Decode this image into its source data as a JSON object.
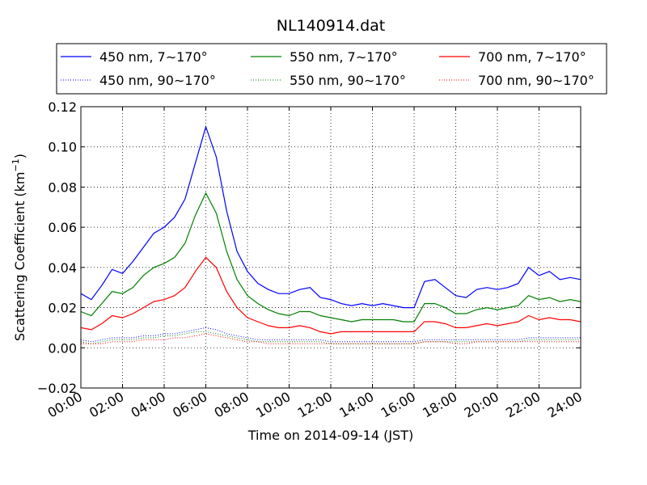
{
  "chart_data": {
    "type": "line",
    "title": "NL140914.dat",
    "xlabel": "Time on 2014-09-14 (JST)",
    "ylabel": "Scattering Coefficient (km",
    "ylabel_sup": "−1",
    "ylabel_end": ")",
    "xlim": [
      0,
      24
    ],
    "ylim": [
      -0.02,
      0.12
    ],
    "grid": true,
    "legend_position": "top",
    "x_ticks": [
      0,
      2,
      4,
      6,
      8,
      10,
      12,
      14,
      16,
      18,
      20,
      22,
      24
    ],
    "x_tick_labels": [
      "00:00",
      "02:00",
      "04:00",
      "06:00",
      "08:00",
      "10:00",
      "12:00",
      "14:00",
      "16:00",
      "18:00",
      "20:00",
      "22:00",
      "24:00"
    ],
    "y_ticks": [
      -0.02,
      0.0,
      0.02,
      0.04,
      0.06,
      0.08,
      0.1,
      0.12
    ],
    "y_tick_labels": [
      "−0.02",
      "0.00",
      "0.02",
      "0.04",
      "0.06",
      "0.08",
      "0.10",
      "0.12"
    ],
    "x": [
      0,
      0.5,
      1,
      1.5,
      2,
      2.5,
      3,
      3.5,
      4,
      4.5,
      5,
      5.5,
      6,
      6.5,
      7,
      7.5,
      8,
      8.5,
      9,
      9.5,
      10,
      10.5,
      11,
      11.5,
      12,
      12.5,
      13,
      13.5,
      14,
      14.5,
      15,
      15.5,
      16,
      16.5,
      17,
      17.5,
      18,
      18.5,
      19,
      19.5,
      20,
      20.5,
      21,
      21.5,
      22,
      22.5,
      23,
      23.5,
      24
    ],
    "series": [
      {
        "name": "450 nm, 7∼170°",
        "color": "#0000ff",
        "style": "solid",
        "values": [
          0.027,
          0.024,
          0.031,
          0.039,
          0.037,
          0.043,
          0.05,
          0.057,
          0.06,
          0.065,
          0.074,
          0.092,
          0.11,
          0.095,
          0.068,
          0.048,
          0.038,
          0.032,
          0.029,
          0.027,
          0.027,
          0.029,
          0.03,
          0.025,
          0.024,
          0.022,
          0.021,
          0.022,
          0.021,
          0.022,
          0.021,
          0.02,
          0.02,
          0.033,
          0.034,
          0.03,
          0.026,
          0.025,
          0.029,
          0.03,
          0.029,
          0.03,
          0.032,
          0.04,
          0.036,
          0.038,
          0.034,
          0.035,
          0.034
        ]
      },
      {
        "name": "550 nm, 7∼170°",
        "color": "#008000",
        "style": "solid",
        "values": [
          0.018,
          0.016,
          0.022,
          0.028,
          0.027,
          0.03,
          0.036,
          0.04,
          0.042,
          0.045,
          0.052,
          0.066,
          0.077,
          0.067,
          0.048,
          0.034,
          0.026,
          0.022,
          0.019,
          0.017,
          0.016,
          0.018,
          0.018,
          0.016,
          0.015,
          0.014,
          0.013,
          0.014,
          0.014,
          0.014,
          0.014,
          0.013,
          0.013,
          0.022,
          0.022,
          0.02,
          0.017,
          0.017,
          0.019,
          0.02,
          0.019,
          0.02,
          0.021,
          0.026,
          0.024,
          0.025,
          0.023,
          0.024,
          0.023
        ]
      },
      {
        "name": "700 nm, 7∼170°",
        "color": "#ff0000",
        "style": "solid",
        "values": [
          0.01,
          0.009,
          0.012,
          0.016,
          0.015,
          0.017,
          0.02,
          0.023,
          0.024,
          0.026,
          0.03,
          0.038,
          0.045,
          0.04,
          0.028,
          0.02,
          0.015,
          0.013,
          0.011,
          0.01,
          0.01,
          0.011,
          0.01,
          0.008,
          0.007,
          0.008,
          0.008,
          0.008,
          0.008,
          0.008,
          0.008,
          0.008,
          0.008,
          0.013,
          0.013,
          0.012,
          0.01,
          0.01,
          0.011,
          0.012,
          0.011,
          0.012,
          0.013,
          0.016,
          0.014,
          0.015,
          0.014,
          0.014,
          0.013
        ]
      },
      {
        "name": "450 nm, 90∼170°",
        "color": "#0000ff",
        "style": "dotted",
        "values": [
          0.004,
          0.003,
          0.004,
          0.005,
          0.005,
          0.005,
          0.006,
          0.006,
          0.007,
          0.007,
          0.008,
          0.009,
          0.01,
          0.009,
          0.007,
          0.006,
          0.005,
          0.004,
          0.004,
          0.004,
          0.004,
          0.004,
          0.004,
          0.004,
          0.003,
          0.003,
          0.003,
          0.003,
          0.003,
          0.003,
          0.003,
          0.003,
          0.003,
          0.004,
          0.004,
          0.004,
          0.004,
          0.004,
          0.004,
          0.004,
          0.004,
          0.004,
          0.004,
          0.005,
          0.005,
          0.005,
          0.005,
          0.005,
          0.005
        ]
      },
      {
        "name": "550 nm, 90∼170°",
        "color": "#008000",
        "style": "dotted",
        "values": [
          0.003,
          0.002,
          0.003,
          0.004,
          0.004,
          0.004,
          0.005,
          0.005,
          0.006,
          0.006,
          0.007,
          0.008,
          0.008,
          0.007,
          0.006,
          0.005,
          0.004,
          0.003,
          0.003,
          0.003,
          0.003,
          0.003,
          0.003,
          0.003,
          0.002,
          0.002,
          0.002,
          0.002,
          0.002,
          0.002,
          0.002,
          0.002,
          0.002,
          0.003,
          0.003,
          0.003,
          0.003,
          0.003,
          0.003,
          0.003,
          0.003,
          0.003,
          0.003,
          0.004,
          0.004,
          0.004,
          0.004,
          0.004,
          0.004
        ]
      },
      {
        "name": "700 nm, 90∼170°",
        "color": "#ff0000",
        "style": "dotted",
        "values": [
          0.002,
          0.002,
          0.002,
          0.003,
          0.003,
          0.003,
          0.004,
          0.004,
          0.004,
          0.005,
          0.005,
          0.006,
          0.007,
          0.006,
          0.005,
          0.004,
          0.003,
          0.003,
          0.002,
          0.002,
          0.002,
          0.002,
          0.002,
          0.002,
          0.002,
          0.002,
          0.002,
          0.002,
          0.002,
          0.002,
          0.002,
          0.002,
          0.002,
          0.003,
          0.003,
          0.003,
          0.002,
          0.002,
          0.003,
          0.003,
          0.003,
          0.003,
          0.003,
          0.003,
          0.003,
          0.003,
          0.003,
          0.003,
          0.003
        ]
      }
    ]
  }
}
